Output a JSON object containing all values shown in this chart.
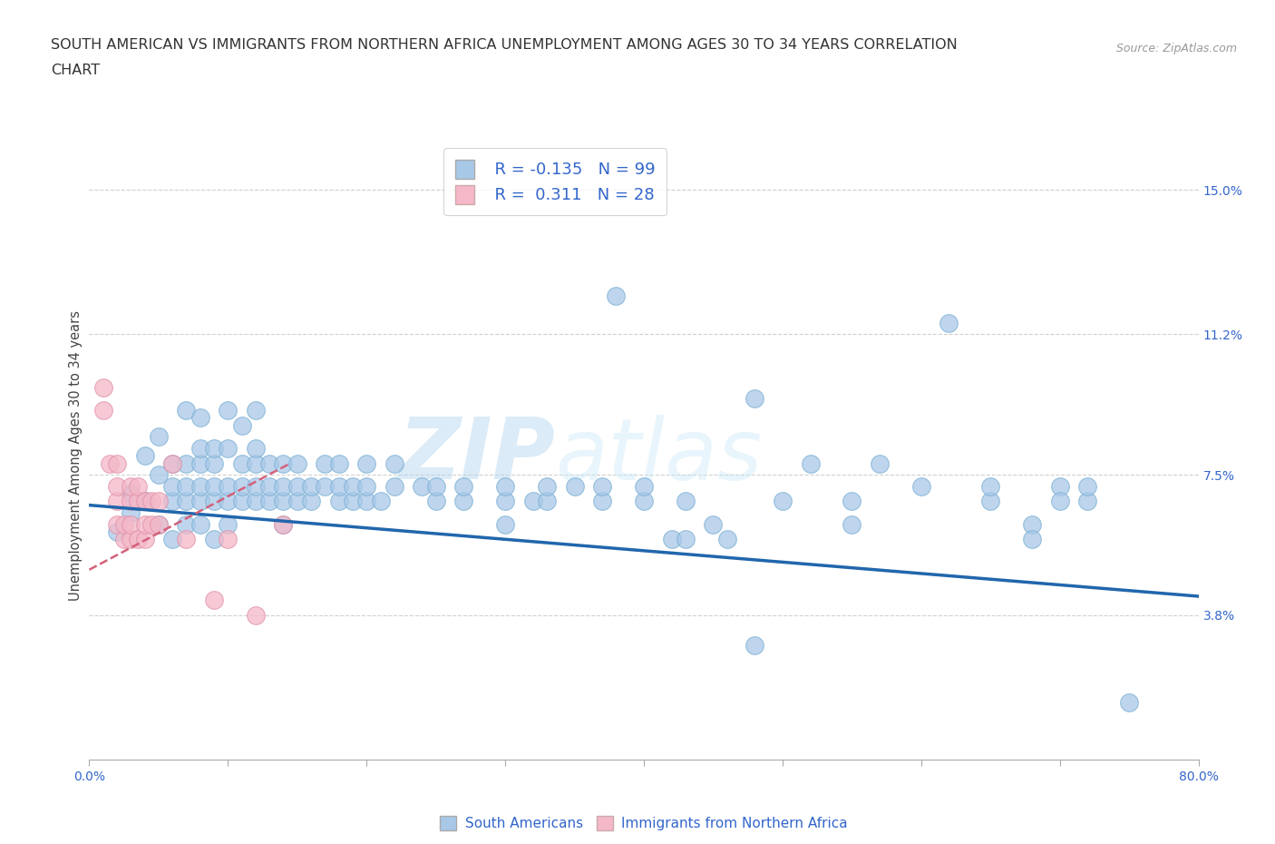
{
  "title_line1": "SOUTH AMERICAN VS IMMIGRANTS FROM NORTHERN AFRICA UNEMPLOYMENT AMONG AGES 30 TO 34 YEARS CORRELATION",
  "title_line2": "CHART",
  "source": "Source: ZipAtlas.com",
  "ylabel": "Unemployment Among Ages 30 to 34 years",
  "xlim": [
    0.0,
    0.8
  ],
  "ylim": [
    0.0,
    0.16
  ],
  "xticks": [
    0.0,
    0.1,
    0.2,
    0.3,
    0.4,
    0.5,
    0.6,
    0.7,
    0.8
  ],
  "ytick_positions": [
    0.038,
    0.075,
    0.112,
    0.15
  ],
  "ytick_labels": [
    "3.8%",
    "7.5%",
    "11.2%",
    "15.0%"
  ],
  "watermark_zip": "ZIP",
  "watermark_atlas": "atlas",
  "blue_color": "#a8c8e8",
  "pink_color": "#f4b8c8",
  "blue_line_color": "#2166ac",
  "pink_line_color": "#d4607a",
  "grid_color": "#d0d0d0",
  "blue_scatter": [
    [
      0.02,
      0.06
    ],
    [
      0.03,
      0.065
    ],
    [
      0.03,
      0.07
    ],
    [
      0.04,
      0.08
    ],
    [
      0.04,
      0.068
    ],
    [
      0.05,
      0.075
    ],
    [
      0.05,
      0.062
    ],
    [
      0.05,
      0.085
    ],
    [
      0.06,
      0.068
    ],
    [
      0.06,
      0.072
    ],
    [
      0.06,
      0.078
    ],
    [
      0.06,
      0.058
    ],
    [
      0.07,
      0.062
    ],
    [
      0.07,
      0.068
    ],
    [
      0.07,
      0.072
    ],
    [
      0.07,
      0.078
    ],
    [
      0.07,
      0.092
    ],
    [
      0.08,
      0.062
    ],
    [
      0.08,
      0.068
    ],
    [
      0.08,
      0.072
    ],
    [
      0.08,
      0.078
    ],
    [
      0.08,
      0.082
    ],
    [
      0.08,
      0.09
    ],
    [
      0.09,
      0.058
    ],
    [
      0.09,
      0.068
    ],
    [
      0.09,
      0.072
    ],
    [
      0.09,
      0.078
    ],
    [
      0.09,
      0.082
    ],
    [
      0.1,
      0.062
    ],
    [
      0.1,
      0.068
    ],
    [
      0.1,
      0.072
    ],
    [
      0.1,
      0.082
    ],
    [
      0.1,
      0.092
    ],
    [
      0.11,
      0.068
    ],
    [
      0.11,
      0.072
    ],
    [
      0.11,
      0.078
    ],
    [
      0.11,
      0.088
    ],
    [
      0.12,
      0.068
    ],
    [
      0.12,
      0.072
    ],
    [
      0.12,
      0.078
    ],
    [
      0.12,
      0.082
    ],
    [
      0.12,
      0.092
    ],
    [
      0.13,
      0.068
    ],
    [
      0.13,
      0.072
    ],
    [
      0.13,
      0.078
    ],
    [
      0.14,
      0.062
    ],
    [
      0.14,
      0.068
    ],
    [
      0.14,
      0.072
    ],
    [
      0.14,
      0.078
    ],
    [
      0.15,
      0.068
    ],
    [
      0.15,
      0.072
    ],
    [
      0.15,
      0.078
    ],
    [
      0.16,
      0.068
    ],
    [
      0.16,
      0.072
    ],
    [
      0.17,
      0.072
    ],
    [
      0.17,
      0.078
    ],
    [
      0.18,
      0.068
    ],
    [
      0.18,
      0.072
    ],
    [
      0.18,
      0.078
    ],
    [
      0.19,
      0.068
    ],
    [
      0.19,
      0.072
    ],
    [
      0.2,
      0.068
    ],
    [
      0.2,
      0.072
    ],
    [
      0.2,
      0.078
    ],
    [
      0.21,
      0.068
    ],
    [
      0.22,
      0.072
    ],
    [
      0.22,
      0.078
    ],
    [
      0.24,
      0.072
    ],
    [
      0.25,
      0.068
    ],
    [
      0.25,
      0.072
    ],
    [
      0.27,
      0.068
    ],
    [
      0.27,
      0.072
    ],
    [
      0.3,
      0.062
    ],
    [
      0.3,
      0.068
    ],
    [
      0.3,
      0.072
    ],
    [
      0.32,
      0.068
    ],
    [
      0.33,
      0.068
    ],
    [
      0.33,
      0.072
    ],
    [
      0.35,
      0.072
    ],
    [
      0.37,
      0.068
    ],
    [
      0.37,
      0.072
    ],
    [
      0.4,
      0.068
    ],
    [
      0.4,
      0.072
    ],
    [
      0.42,
      0.058
    ],
    [
      0.43,
      0.058
    ],
    [
      0.43,
      0.068
    ],
    [
      0.45,
      0.062
    ],
    [
      0.46,
      0.058
    ],
    [
      0.48,
      0.03
    ],
    [
      0.5,
      0.068
    ],
    [
      0.52,
      0.078
    ],
    [
      0.55,
      0.062
    ],
    [
      0.55,
      0.068
    ],
    [
      0.57,
      0.078
    ],
    [
      0.38,
      0.122
    ],
    [
      0.48,
      0.095
    ],
    [
      0.6,
      0.072
    ],
    [
      0.62,
      0.115
    ],
    [
      0.65,
      0.068
    ],
    [
      0.65,
      0.072
    ],
    [
      0.68,
      0.062
    ],
    [
      0.68,
      0.058
    ],
    [
      0.7,
      0.072
    ],
    [
      0.7,
      0.068
    ],
    [
      0.72,
      0.068
    ],
    [
      0.72,
      0.072
    ],
    [
      0.75,
      0.015
    ]
  ],
  "pink_scatter": [
    [
      0.01,
      0.092
    ],
    [
      0.01,
      0.098
    ],
    [
      0.015,
      0.078
    ],
    [
      0.02,
      0.062
    ],
    [
      0.02,
      0.068
    ],
    [
      0.02,
      0.072
    ],
    [
      0.02,
      0.078
    ],
    [
      0.025,
      0.058
    ],
    [
      0.025,
      0.062
    ],
    [
      0.03,
      0.058
    ],
    [
      0.03,
      0.062
    ],
    [
      0.03,
      0.068
    ],
    [
      0.03,
      0.072
    ],
    [
      0.035,
      0.058
    ],
    [
      0.035,
      0.068
    ],
    [
      0.035,
      0.072
    ],
    [
      0.04,
      0.058
    ],
    [
      0.04,
      0.062
    ],
    [
      0.04,
      0.068
    ],
    [
      0.045,
      0.062
    ],
    [
      0.045,
      0.068
    ],
    [
      0.05,
      0.062
    ],
    [
      0.05,
      0.068
    ],
    [
      0.06,
      0.078
    ],
    [
      0.07,
      0.058
    ],
    [
      0.09,
      0.042
    ],
    [
      0.1,
      0.058
    ],
    [
      0.12,
      0.038
    ],
    [
      0.14,
      0.062
    ]
  ],
  "blue_trend_x": [
    0.0,
    0.8
  ],
  "blue_trend_y": [
    0.067,
    0.043
  ],
  "pink_trend_x": [
    0.0,
    0.145
  ],
  "pink_trend_y": [
    0.05,
    0.078
  ]
}
